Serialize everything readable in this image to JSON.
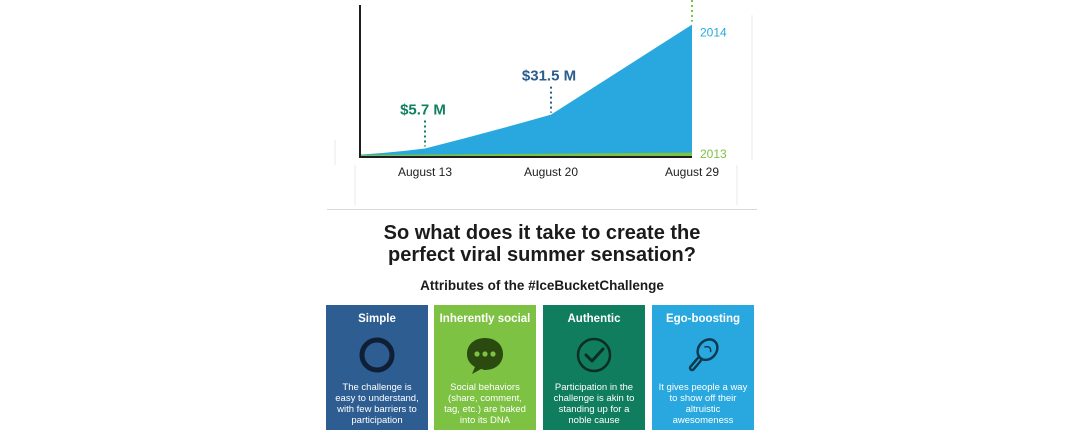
{
  "chart_data": {
    "type": "area",
    "categories": [
      "August 13",
      "August 20",
      "August 29"
    ],
    "series": [
      {
        "name": "2014",
        "values": [
          5.7,
          31.5,
          100
        ],
        "color": "#29a8df"
      },
      {
        "name": "2013",
        "values": [
          1.8,
          1.8,
          1.8
        ],
        "color": "#7dc242"
      }
    ],
    "annotations": [
      {
        "label": "$5.7 M",
        "x": "August 13",
        "value": 5.7,
        "color": "#10805f"
      },
      {
        "label": "$31.5 M",
        "x": "August 20",
        "value": 31.5,
        "color": "#2b5d8c"
      }
    ],
    "tick_labels": [
      "August 13",
      "August 20",
      "August 29"
    ],
    "ylim": [
      0,
      105
    ]
  },
  "headline": {
    "line1": "So what does it take to create the",
    "line2": "perfect viral summer sensation?"
  },
  "subhead": "Attributes of the #IceBucketChallenge",
  "cards": [
    {
      "title": "Simple",
      "icon": "ring-icon",
      "color": "#2e5d92",
      "text": "The challenge is easy to understand, with few barriers to participation"
    },
    {
      "title": "Inherently social",
      "icon": "speech-bubble-icon",
      "color": "#7dc242",
      "text": "Social behaviors (share, comment, tag, etc.) are baked into its DNA"
    },
    {
      "title": "Authentic",
      "icon": "checkmark-icon",
      "color": "#0f7d5e",
      "text": "Participation in the challenge is akin to standing up for a noble cause"
    },
    {
      "title": "Ego-boosting",
      "icon": "hand-mirror-icon",
      "color": "#29a8df",
      "text": "It gives people a way to show off their altruistic awesomeness"
    }
  ]
}
